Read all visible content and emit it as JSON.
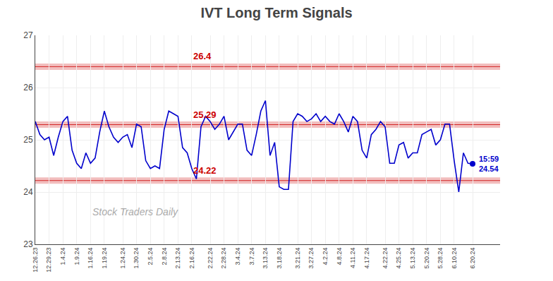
{
  "chart_data": {
    "type": "line",
    "title": "IVT Long Term Signals",
    "categories": [
      "12.26.23",
      null,
      null,
      "12.29.23",
      null,
      null,
      "1.4.24",
      null,
      null,
      "1.9.24",
      null,
      null,
      "1.16.24",
      null,
      null,
      "1.19.24",
      null,
      null,
      null,
      "1.24.24",
      null,
      null,
      "1.30.24",
      null,
      null,
      "2.5.24",
      null,
      null,
      "2.8.24",
      null,
      null,
      "2.13.24",
      null,
      null,
      "2.16.24",
      null,
      null,
      null,
      "2.22.24",
      null,
      null,
      "2.28.24",
      null,
      null,
      "3.4.24",
      null,
      null,
      "3.7.24",
      null,
      null,
      "3.13.24",
      null,
      null,
      "3.18.24",
      null,
      null,
      null,
      "3.21.24",
      null,
      null,
      "3.27.24",
      null,
      null,
      "4.2.24",
      null,
      null,
      "4.8.24",
      null,
      null,
      "4.11.24",
      null,
      null,
      "4.17.24",
      null,
      null,
      null,
      "4.22.24",
      null,
      null,
      "4.25.24",
      null,
      null,
      "5.13.24",
      null,
      null,
      "5.20.24",
      null,
      null,
      "5.28.24",
      null,
      null,
      "6.10.24",
      null,
      null,
      null,
      "6.20.24"
    ],
    "values": [
      25.35,
      25.1,
      25.0,
      25.05,
      24.7,
      25.05,
      25.35,
      25.45,
      24.8,
      24.55,
      24.45,
      24.75,
      24.55,
      24.65,
      25.15,
      25.55,
      25.25,
      25.05,
      24.95,
      25.05,
      25.1,
      24.85,
      25.3,
      25.25,
      24.6,
      24.45,
      24.5,
      24.45,
      25.2,
      25.55,
      25.5,
      25.45,
      24.85,
      24.75,
      24.45,
      24.25,
      25.25,
      25.45,
      25.35,
      25.2,
      25.3,
      25.45,
      25.0,
      25.15,
      25.3,
      25.3,
      24.8,
      24.7,
      25.1,
      25.55,
      25.75,
      24.7,
      24.95,
      24.1,
      24.05,
      24.05,
      25.35,
      25.5,
      25.45,
      25.35,
      25.4,
      25.5,
      25.35,
      25.45,
      25.35,
      25.3,
      25.5,
      25.35,
      25.15,
      25.45,
      25.35,
      24.8,
      24.65,
      25.1,
      25.2,
      25.35,
      25.25,
      24.55,
      24.55,
      24.9,
      24.95,
      24.65,
      24.75,
      24.75,
      25.1,
      25.15,
      25.2,
      24.9,
      25.0,
      25.3,
      25.3,
      24.6,
      24.0,
      24.75,
      24.55,
      24.54
    ],
    "color": "#0000cc",
    "ylim": [
      23.0,
      27.0
    ],
    "yticks": [
      23,
      24,
      25,
      26,
      27
    ],
    "grid": true,
    "hlines": [
      {
        "value": 26.4,
        "color": "#cc0000"
      },
      {
        "value": 25.29,
        "color": "#cc0000"
      },
      {
        "value": 24.22,
        "color": "#cc0000"
      }
    ],
    "last_label": "15:59\n24.54",
    "watermark": "Stock Traders Daily"
  }
}
